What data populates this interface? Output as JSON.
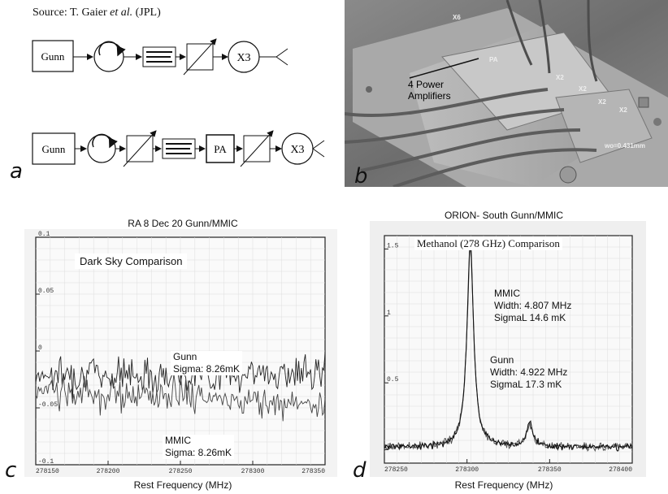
{
  "source": {
    "prefix": "Source: T. Gaier ",
    "etal": "et al.",
    "suffix": " (JPL)"
  },
  "panel_a": {
    "letter": "a",
    "chain1": [
      "Gunn",
      "circulator",
      "filter",
      "attenuator",
      "X3",
      "horn"
    ],
    "chain2": [
      "Gunn",
      "circulator",
      "attenuator",
      "filter",
      "PA",
      "attenuator",
      "X3",
      "horn"
    ],
    "gunn": "Gunn",
    "x3": "X3",
    "pa": "PA"
  },
  "panel_b": {
    "letter": "b",
    "callout": "4 Power\nAmplifiers",
    "callout_l1": "4 Power",
    "callout_l2": "Amplifiers",
    "labels": [
      "X6",
      "PA",
      "X2",
      "X2",
      "X2",
      "X2",
      "wo=0.431mm"
    ]
  },
  "panel_c": {
    "letter": "c",
    "title": "RA 8 Dec 20 Gunn/MMIC",
    "inset": "Dark Sky Comparison",
    "gunn_l1": "Gunn",
    "gunn_l2": "Sigma: 8.26mK",
    "mmic_l1": "MMIC",
    "mmic_l2": "Sigma: 8.26mK",
    "xlabel": "Rest Frequency (MHz)"
  },
  "panel_d": {
    "letter": "d",
    "title": "ORION- South Gunn/MMIC",
    "inset": "Methanol (278 GHz) Comparison",
    "mmic_l1": "MMIC",
    "mmic_l2": "Width: 4.807 MHz",
    "mmic_l3": "SigmaL 14.6 mK",
    "gunn_l1": "Gunn",
    "gunn_l2": "Width: 4.922 MHz",
    "gunn_l3": "SigmaL 17.3 mK",
    "xlabel": "Rest Frequency (MHz)"
  },
  "chart_data": [
    {
      "type": "line",
      "title": "RA 8 Dec 20 Gunn/MMIC",
      "xlabel": "Rest Frequency (MHz)",
      "ylabel": "",
      "xlim": [
        278150,
        278350
      ],
      "ylim": [
        -0.1,
        0.1
      ],
      "xticks": [
        278150,
        278200,
        278250,
        278300,
        278350
      ],
      "yticks": [
        -0.1,
        -0.05,
        0,
        0.05,
        0.1
      ],
      "series": [
        {
          "name": "Gunn",
          "level": -0.02,
          "sigma": 0.00826
        },
        {
          "name": "MMIC",
          "level": -0.035,
          "sigma": 0.00826
        }
      ]
    },
    {
      "type": "line",
      "title": "ORION- South Gunn/MMIC",
      "xlabel": "Rest Frequency (MHz)",
      "ylabel": "",
      "xlim": [
        278250,
        278400
      ],
      "ylim": [
        -0.1,
        1.6
      ],
      "xticks": [
        278250,
        278300,
        278350,
        278400
      ],
      "yticks": [
        0,
        0.5,
        1,
        1.5
      ],
      "series": [
        {
          "name": "MMIC",
          "peak_x": 278302,
          "peak_y": 1.52,
          "width_mhz": 4.807
        },
        {
          "name": "Gunn",
          "peak_x": 278302,
          "peak_y": 1.48,
          "width_mhz": 4.922
        },
        {
          "name": "secondary line",
          "peak_x": 278338,
          "peak_y": 0.18,
          "width_mhz": 4.5
        }
      ]
    }
  ]
}
